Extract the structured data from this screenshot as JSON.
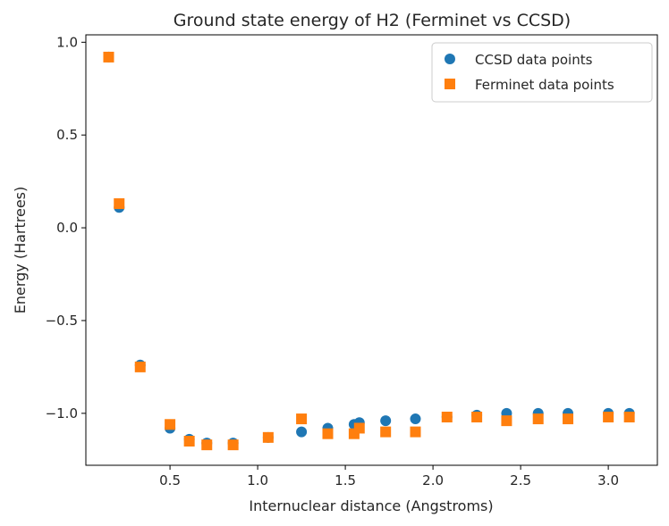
{
  "chart_data": {
    "type": "scatter",
    "title": "Ground state energy of H2 (Ferminet vs CCSD)",
    "xlabel": "Internuclear distance (Angstroms)",
    "ylabel": "Energy (Hartrees)",
    "xlim": [
      0.02,
      3.28
    ],
    "ylim": [
      -1.28,
      1.04
    ],
    "xticks": [
      0.5,
      1.0,
      1.5,
      2.0,
      2.5,
      3.0
    ],
    "xtick_labels": [
      "0.5",
      "1.0",
      "1.5",
      "2.0",
      "2.5",
      "3.0"
    ],
    "yticks": [
      1.0,
      0.5,
      0.0,
      -0.5,
      -1.0
    ],
    "ytick_labels": [
      "1.0",
      "0.5",
      "0.0",
      "−0.5",
      "−1.0"
    ],
    "legend_position": "top-right",
    "series": [
      {
        "name": "CCSD data points",
        "marker": "circle",
        "color": "#1f77b4",
        "x": [
          0.15,
          0.21,
          0.33,
          0.5,
          0.61,
          0.71,
          0.86,
          1.06,
          1.25,
          1.4,
          1.55,
          1.58,
          1.73,
          1.9,
          2.08,
          2.25,
          2.42,
          2.6,
          2.77,
          3.0,
          3.12
        ],
        "y": [
          0.92,
          0.11,
          -0.74,
          -1.08,
          -1.14,
          -1.16,
          -1.16,
          -1.13,
          -1.1,
          -1.08,
          -1.06,
          -1.05,
          -1.04,
          -1.03,
          -1.02,
          -1.01,
          -1.0,
          -1.0,
          -1.0,
          -1.0,
          -1.0
        ]
      },
      {
        "name": "Ferminet data points",
        "marker": "square",
        "color": "#ff7f0e",
        "x": [
          0.15,
          0.21,
          0.33,
          0.5,
          0.61,
          0.71,
          0.86,
          1.06,
          1.25,
          1.4,
          1.55,
          1.58,
          1.73,
          1.9,
          2.08,
          2.25,
          2.42,
          2.6,
          2.77,
          3.0,
          3.12
        ],
        "y": [
          0.92,
          0.13,
          -0.75,
          -1.06,
          -1.15,
          -1.17,
          -1.17,
          -1.13,
          -1.03,
          -1.11,
          -1.11,
          -1.08,
          -1.1,
          -1.1,
          -1.02,
          -1.02,
          -1.04,
          -1.03,
          -1.03,
          -1.02,
          -1.02
        ]
      }
    ]
  }
}
